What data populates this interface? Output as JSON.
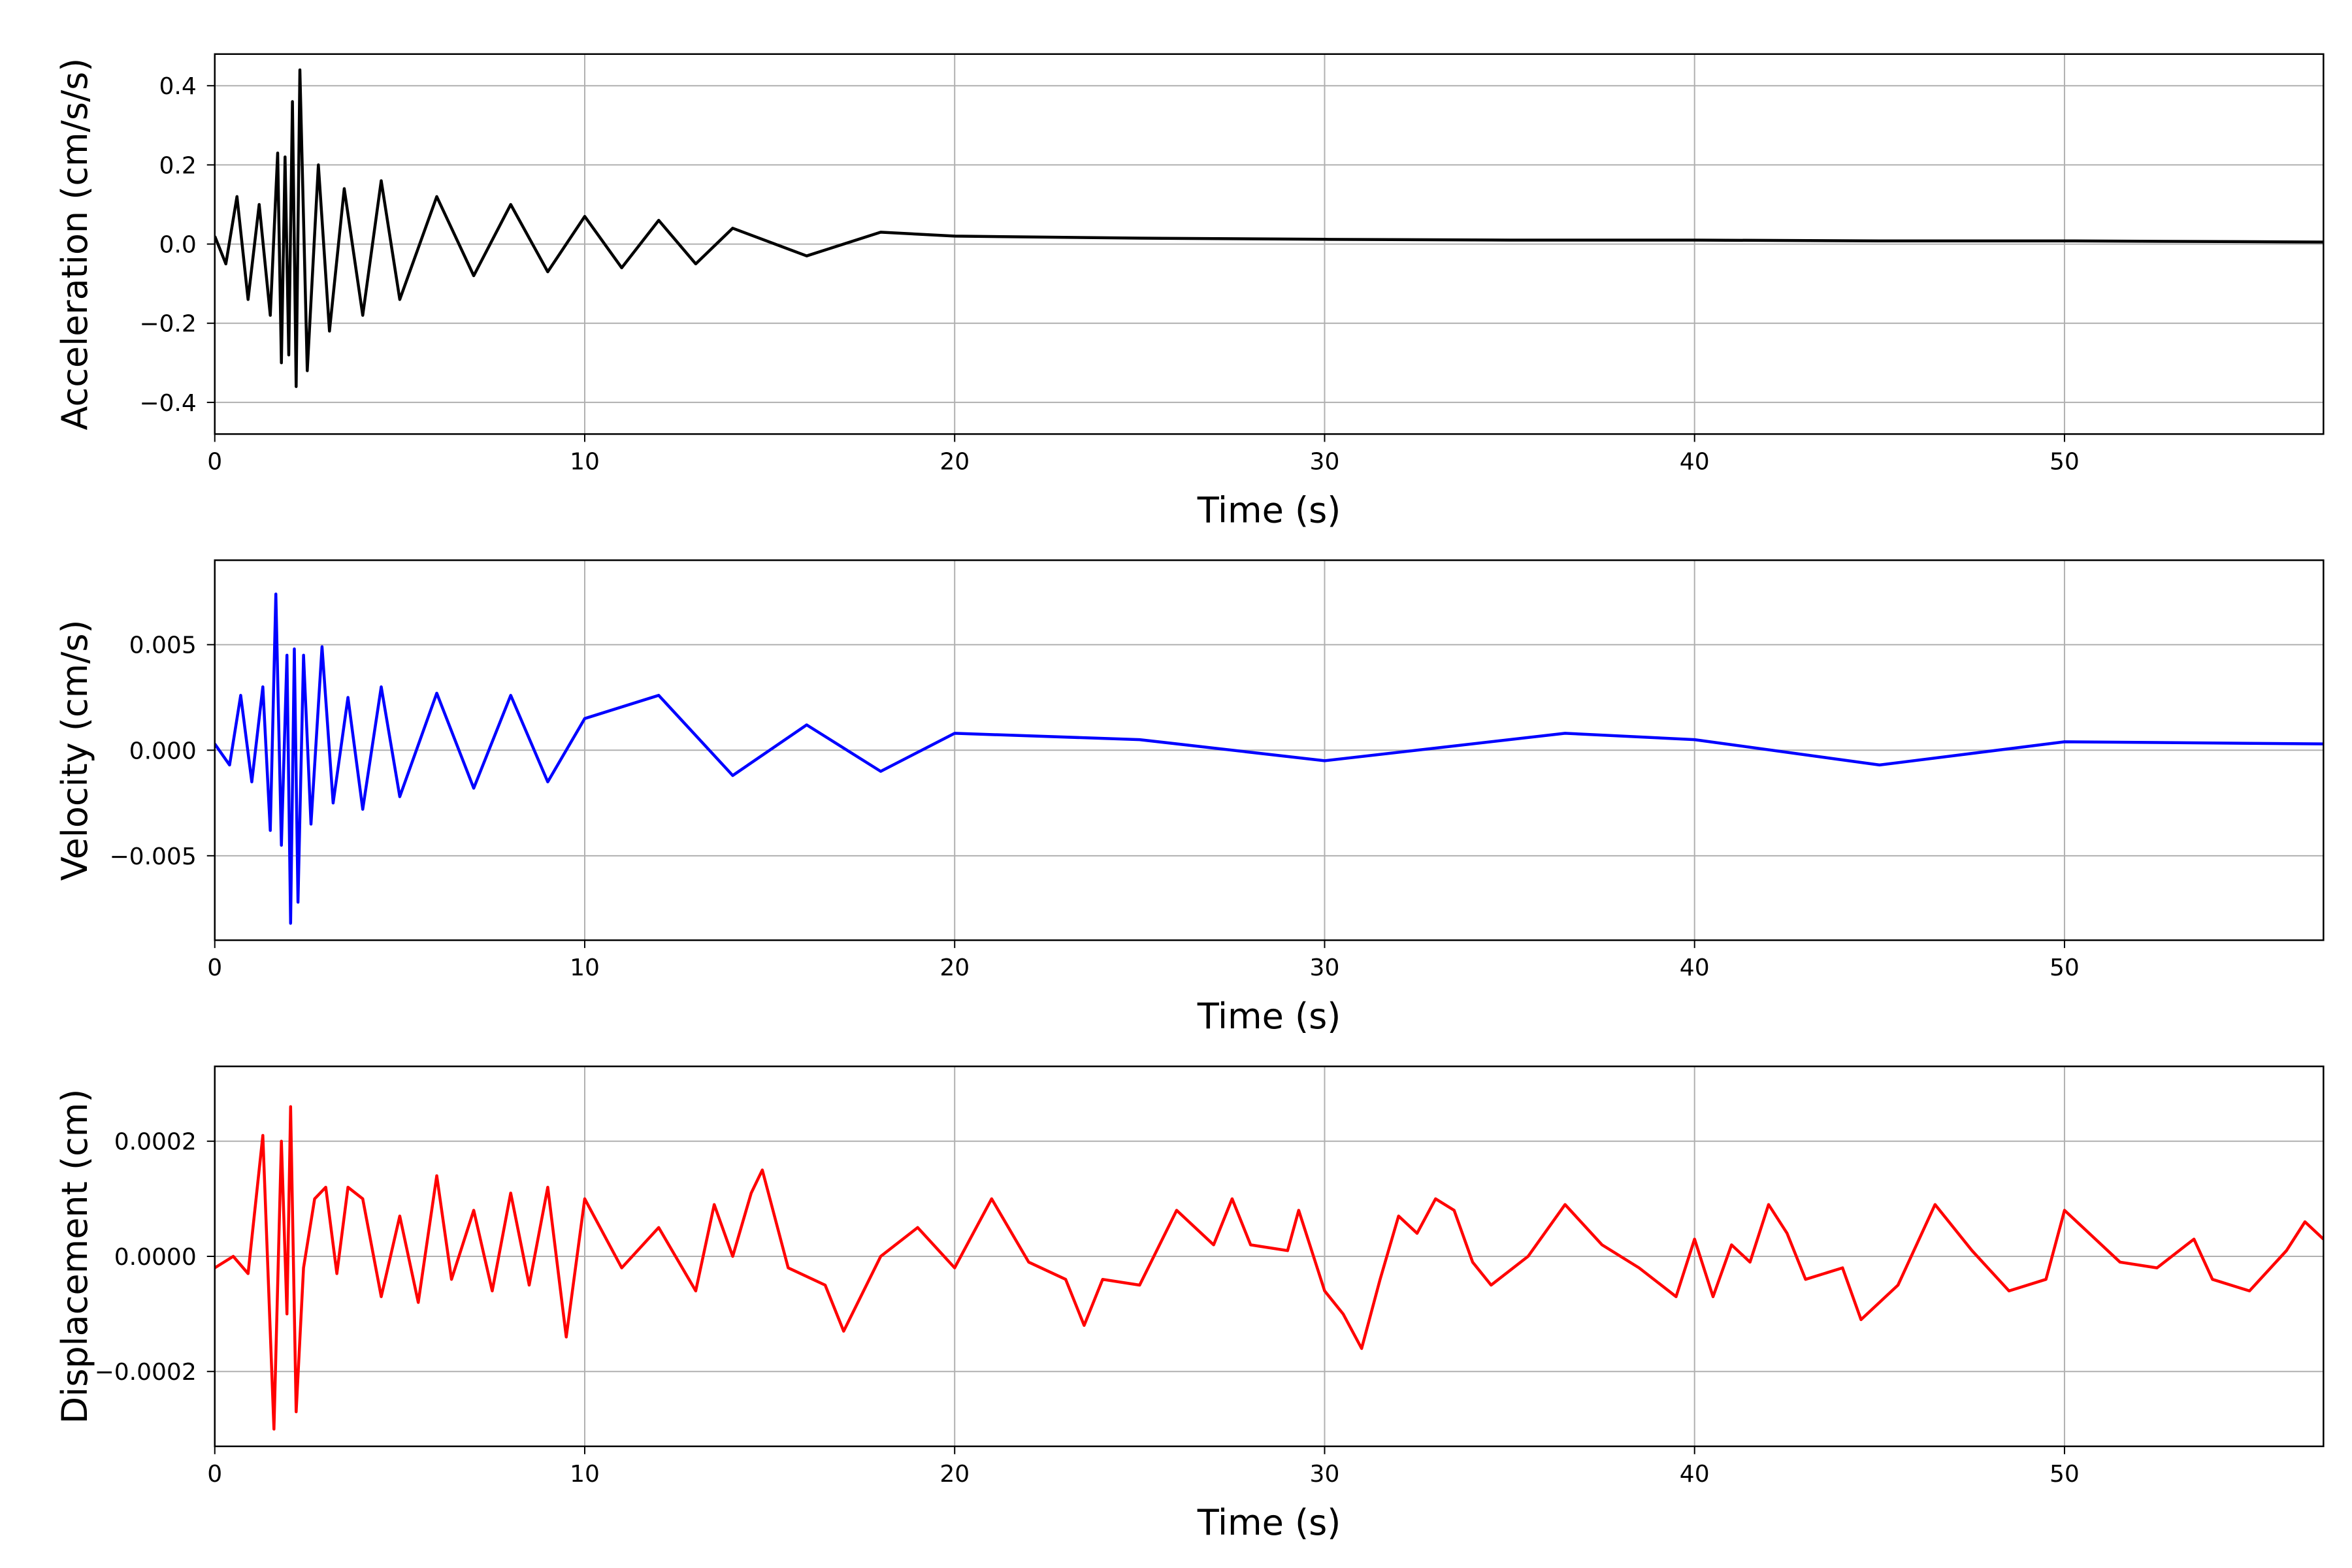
{
  "chart_data": [
    {
      "type": "line",
      "xlabel": "Time (s)",
      "ylabel": "Acceleration (cm/s/s)",
      "xlim": [
        0,
        57
      ],
      "ylim": [
        -0.48,
        0.48
      ],
      "xticks": [
        0,
        10,
        20,
        30,
        40,
        50
      ],
      "xtick_labels": [
        "0",
        "10",
        "20",
        "30",
        "40",
        "50"
      ],
      "yticks": [
        -0.4,
        -0.2,
        0.0,
        0.2,
        0.4
      ],
      "ytick_labels": [
        "−0.4",
        "−0.2",
        "0.0",
        "0.2",
        "0.4"
      ],
      "grid": true,
      "color": "#000000",
      "series": [
        {
          "x": [
            0,
            0.3,
            0.6,
            0.9,
            1.2,
            1.5,
            1.7,
            1.8,
            1.9,
            2.0,
            2.1,
            2.2,
            2.3,
            2.5,
            2.8,
            3.1,
            3.5,
            4.0,
            4.5,
            5.0,
            6.0,
            7.0,
            8.0,
            9.0,
            10.0,
            11.0,
            12.0,
            13.0,
            14.0,
            16.0,
            18.0,
            20.0,
            25.0,
            30.0,
            35.0,
            40.0,
            45.0,
            50.0,
            57.0
          ],
          "y": [
            0.02,
            -0.05,
            0.12,
            -0.14,
            0.1,
            -0.18,
            0.23,
            -0.3,
            0.22,
            -0.28,
            0.36,
            -0.36,
            0.44,
            -0.32,
            0.2,
            -0.22,
            0.14,
            -0.18,
            0.16,
            -0.14,
            0.12,
            -0.08,
            0.1,
            -0.07,
            0.07,
            -0.06,
            0.06,
            -0.05,
            0.04,
            -0.03,
            0.03,
            0.02,
            0.015,
            0.012,
            0.01,
            0.01,
            0.008,
            0.008,
            0.005
          ]
        }
      ]
    },
    {
      "type": "line",
      "xlabel": "Time (s)",
      "ylabel": "Velocity (cm/s)",
      "xlim": [
        0,
        57
      ],
      "ylim": [
        -0.009,
        0.009
      ],
      "xticks": [
        0,
        10,
        20,
        30,
        40,
        50
      ],
      "xtick_labels": [
        "0",
        "10",
        "20",
        "30",
        "40",
        "50"
      ],
      "yticks": [
        -0.005,
        0.0,
        0.005
      ],
      "ytick_labels": [
        "−0.005",
        "0.000",
        "0.005"
      ],
      "grid": true,
      "color": "#0000ff",
      "series": [
        {
          "x": [
            0,
            0.4,
            0.7,
            1.0,
            1.3,
            1.5,
            1.65,
            1.8,
            1.95,
            2.05,
            2.15,
            2.25,
            2.4,
            2.6,
            2.9,
            3.2,
            3.6,
            4.0,
            4.5,
            5.0,
            6.0,
            7.0,
            8.0,
            9.0,
            10.0,
            12.0,
            14.0,
            16.0,
            18.0,
            20.0,
            25.0,
            30.0,
            36.5,
            40.0,
            45.0,
            50.0,
            57.0
          ],
          "y": [
            0.0003,
            -0.0007,
            0.0026,
            -0.0015,
            0.003,
            -0.0038,
            0.0074,
            -0.0045,
            0.0045,
            -0.0082,
            0.0048,
            -0.0072,
            0.0045,
            -0.0035,
            0.0049,
            -0.0025,
            0.0025,
            -0.0028,
            0.003,
            -0.0022,
            0.0027,
            -0.0018,
            0.0026,
            -0.0015,
            0.0015,
            0.0026,
            -0.0012,
            0.0012,
            -0.001,
            0.0008,
            0.0005,
            -0.0005,
            0.0008,
            0.0005,
            -0.0007,
            0.0004,
            0.0003
          ]
        }
      ]
    },
    {
      "type": "line",
      "xlabel": "Time (s)",
      "ylabel": "Displacement (cm)",
      "xlim": [
        0,
        57
      ],
      "ylim": [
        -0.00033,
        0.00033
      ],
      "xticks": [
        0,
        10,
        20,
        30,
        40,
        50
      ],
      "xtick_labels": [
        "0",
        "10",
        "20",
        "30",
        "40",
        "50"
      ],
      "yticks": [
        -0.0002,
        0.0,
        0.0002
      ],
      "ytick_labels": [
        "−0.0002",
        "0.0000",
        "0.0002"
      ],
      "grid": true,
      "color": "#ff0000",
      "series": [
        {
          "x": [
            0,
            0.5,
            0.9,
            1.3,
            1.6,
            1.8,
            1.95,
            2.05,
            2.2,
            2.4,
            2.7,
            3.0,
            3.3,
            3.6,
            4.0,
            4.5,
            5.0,
            5.5,
            6.0,
            6.4,
            7.0,
            7.5,
            8.0,
            8.5,
            9.0,
            9.5,
            10.0,
            11.0,
            12.0,
            13.0,
            13.5,
            14.0,
            14.5,
            14.8,
            15.5,
            16.5,
            17.0,
            18.0,
            19.0,
            20.0,
            21.0,
            22.0,
            23.0,
            23.5,
            24.0,
            25.0,
            26.0,
            27.0,
            27.5,
            28.0,
            29.0,
            29.3,
            30.0,
            30.5,
            31.0,
            31.5,
            32.0,
            32.5,
            33.0,
            33.5,
            34.0,
            34.5,
            35.5,
            36.5,
            37.5,
            38.5,
            39.5,
            40.0,
            40.5,
            41.0,
            41.5,
            42.0,
            42.5,
            43.0,
            44.0,
            44.5,
            45.5,
            46.5,
            47.5,
            48.5,
            49.5,
            50.0,
            50.5,
            51.5,
            52.5,
            53.5,
            54.0,
            55.0,
            56.0,
            56.5,
            57.0
          ],
          "y": [
            -2e-05,
            0.0,
            -3e-05,
            0.00021,
            -0.0003,
            0.0002,
            -0.0001,
            0.00026,
            -0.00027,
            -2e-05,
            0.0001,
            0.00012,
            -3e-05,
            0.00012,
            0.0001,
            -7e-05,
            7e-05,
            -8e-05,
            0.00014,
            -4e-05,
            8e-05,
            -6e-05,
            0.00011,
            -5e-05,
            0.00012,
            -0.00014,
            0.0001,
            -2e-05,
            5e-05,
            -6e-05,
            9e-05,
            0.0,
            0.00011,
            0.00015,
            -2e-05,
            -5e-05,
            -0.00013,
            0.0,
            5e-05,
            -2e-05,
            0.0001,
            -1e-05,
            -4e-05,
            -0.00012,
            -4e-05,
            -5e-05,
            8e-05,
            2e-05,
            0.0001,
            2e-05,
            1e-05,
            8e-05,
            -6e-05,
            -0.0001,
            -0.00016,
            -4e-05,
            7e-05,
            4e-05,
            0.0001,
            8e-05,
            -1e-05,
            -5e-05,
            0.0,
            9e-05,
            2e-05,
            -2e-05,
            -7e-05,
            3e-05,
            -7e-05,
            2e-05,
            -1e-05,
            9e-05,
            4e-05,
            -4e-05,
            -2e-05,
            -0.00011,
            -5e-05,
            9e-05,
            1e-05,
            -6e-05,
            -4e-05,
            8e-05,
            5e-05,
            -1e-05,
            -2e-05,
            3e-05,
            -4e-05,
            -6e-05,
            1e-05,
            6e-05,
            3e-05
          ]
        }
      ]
    }
  ]
}
